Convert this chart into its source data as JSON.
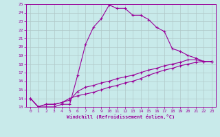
{
  "xlabel": "Windchill (Refroidissement éolien,°C)",
  "bg_color": "#c8eaea",
  "line_color": "#990099",
  "grid_color": "#b0c8c8",
  "ylim": [
    13,
    25
  ],
  "xlim": [
    -0.5,
    23.5
  ],
  "yticks": [
    13,
    14,
    15,
    16,
    17,
    18,
    19,
    20,
    21,
    22,
    23,
    24,
    25
  ],
  "xticks": [
    0,
    1,
    2,
    3,
    4,
    5,
    6,
    7,
    8,
    9,
    10,
    11,
    12,
    13,
    14,
    15,
    16,
    17,
    18,
    19,
    20,
    21,
    22,
    23
  ],
  "line1_x": [
    0,
    1,
    2,
    3,
    4,
    5,
    6,
    7,
    8,
    9,
    10,
    11,
    12,
    13,
    14,
    15,
    16,
    17,
    18,
    19,
    20,
    21,
    22,
    23
  ],
  "line1_y": [
    14,
    13,
    13,
    13,
    13.3,
    13.3,
    16.7,
    20.3,
    22.3,
    23.3,
    24.9,
    24.5,
    24.5,
    23.7,
    23.7,
    23.2,
    22.3,
    21.8,
    19.8,
    19.5,
    19.0,
    18.7,
    18.3,
    18.3
  ],
  "line2_x": [
    0,
    1,
    2,
    3,
    4,
    5,
    6,
    7,
    8,
    9,
    10,
    11,
    12,
    13,
    14,
    15,
    16,
    17,
    18,
    19,
    20,
    21,
    22,
    23
  ],
  "line2_y": [
    14,
    13,
    13.3,
    13.3,
    13.5,
    14.0,
    14.3,
    14.5,
    14.7,
    15.0,
    15.3,
    15.5,
    15.8,
    16.0,
    16.3,
    16.7,
    17.0,
    17.3,
    17.5,
    17.8,
    18.0,
    18.2,
    18.3,
    18.3
  ],
  "line3_x": [
    0,
    1,
    2,
    3,
    4,
    5,
    6,
    7,
    8,
    9,
    10,
    11,
    12,
    13,
    14,
    15,
    16,
    17,
    18,
    19,
    20,
    21,
    22,
    23
  ],
  "line3_y": [
    14,
    13,
    13.3,
    13.3,
    13.5,
    13.8,
    14.8,
    15.3,
    15.5,
    15.8,
    16.0,
    16.3,
    16.5,
    16.7,
    17.0,
    17.3,
    17.5,
    17.8,
    18.0,
    18.2,
    18.5,
    18.5,
    18.3,
    18.3
  ]
}
